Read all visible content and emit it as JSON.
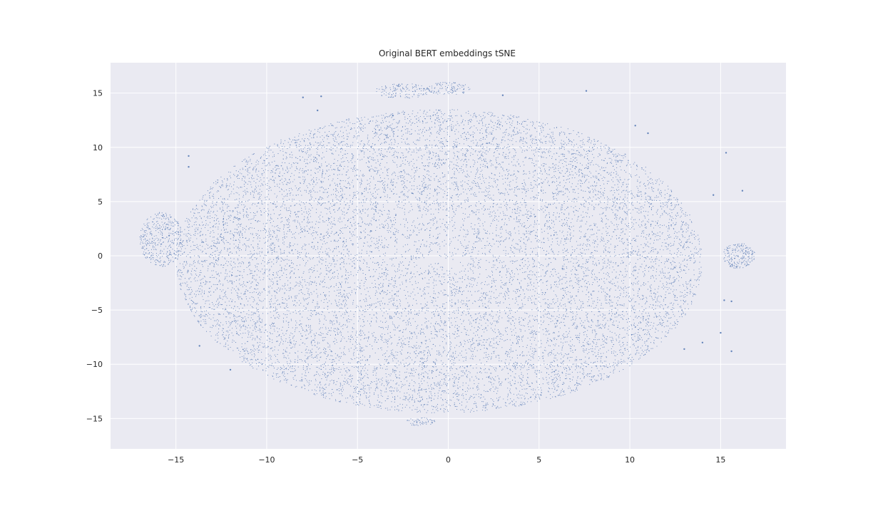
{
  "chart_data": {
    "type": "scatter",
    "title": "Original BERT embeddings tSNE",
    "xlabel": "",
    "ylabel": "",
    "xlim": [
      -18.6,
      18.6
    ],
    "ylim": [
      -17.8,
      17.8
    ],
    "xticks": [
      -15,
      -10,
      -5,
      0,
      5,
      10,
      15
    ],
    "yticks": [
      -15,
      -10,
      -5,
      0,
      5,
      10,
      15
    ],
    "xtick_labels": [
      "−15",
      "−10",
      "−5",
      "0",
      "5",
      "10",
      "15"
    ],
    "ytick_labels": [
      "−15",
      "−10",
      "−5",
      "0",
      "5",
      "10",
      "15"
    ],
    "grid": true,
    "legend": "none",
    "colors": {
      "background": "#eaeaf2",
      "grid": "#ffffff",
      "points": "#4c72b0",
      "text": "#262626"
    },
    "description_regions": [
      {
        "kind": "main_cloud",
        "center": [
          -0.5,
          -0.5
        ],
        "radius_x": 14.5,
        "radius_y": 14.0,
        "weight": 1.0
      },
      {
        "kind": "cluster",
        "center": [
          16.0,
          0.0
        ],
        "radius_x": 0.9,
        "radius_y": 1.2,
        "weight": 0.015
      },
      {
        "kind": "cluster",
        "center": [
          -15.8,
          1.5
        ],
        "radius_x": 1.2,
        "radius_y": 2.5,
        "weight": 0.03
      },
      {
        "kind": "cluster",
        "center": [
          0.0,
          15.4
        ],
        "radius_x": 1.2,
        "radius_y": 0.6,
        "weight": 0.008
      },
      {
        "kind": "cluster",
        "center": [
          -2.5,
          15.2
        ],
        "radius_x": 1.5,
        "radius_y": 0.7,
        "weight": 0.01
      },
      {
        "kind": "cluster",
        "center": [
          -1.5,
          -15.3
        ],
        "radius_x": 0.8,
        "radius_y": 0.4,
        "weight": 0.004
      }
    ],
    "outliers": [
      [
        -14.3,
        9.2
      ],
      [
        -14.3,
        8.2
      ],
      [
        -13.7,
        -8.3
      ],
      [
        -12.0,
        -10.5
      ],
      [
        -8.0,
        14.6
      ],
      [
        -7.2,
        13.4
      ],
      [
        -7.0,
        14.7
      ],
      [
        3.0,
        14.8
      ],
      [
        7.6,
        15.2
      ],
      [
        10.3,
        12.0
      ],
      [
        11.0,
        11.3
      ],
      [
        15.3,
        9.5
      ],
      [
        16.2,
        6.0
      ],
      [
        14.6,
        5.6
      ],
      [
        15.2,
        -4.1
      ],
      [
        15.6,
        -4.2
      ],
      [
        15.0,
        -7.1
      ],
      [
        15.6,
        -8.8
      ],
      [
        14.0,
        -8.0
      ],
      [
        13.0,
        -8.6
      ]
    ]
  }
}
